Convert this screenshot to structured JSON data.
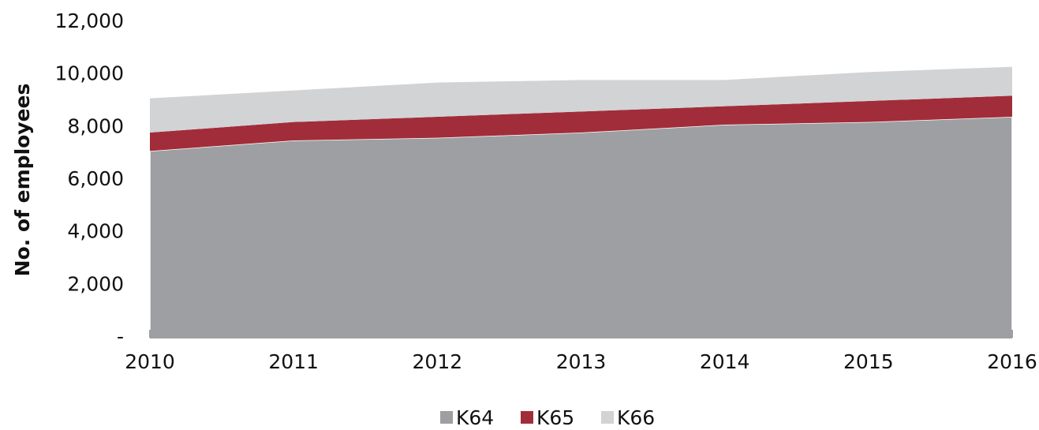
{
  "chart_data": {
    "type": "stacked-area",
    "y_label": "No. of employees",
    "categories": [
      "2010",
      "2011",
      "2012",
      "2013",
      "2014",
      "2015",
      "2016"
    ],
    "series": [
      {
        "name": "K64",
        "color": "#9d9fa2",
        "values": [
          7100,
          7500,
          7600,
          7800,
          8100,
          8200,
          8400
        ]
      },
      {
        "name": "K65",
        "color": "#a22d3a",
        "values": [
          700,
          700,
          800,
          800,
          700,
          800,
          800
        ]
      },
      {
        "name": "K66",
        "color": "#d2d3d5",
        "values": [
          1300,
          1200,
          1300,
          1200,
          1000,
          1100,
          1100
        ]
      }
    ],
    "ylim": [
      0,
      12000
    ],
    "yticks": [
      {
        "value": 0,
        "label": "-"
      },
      {
        "value": 2000,
        "label": "2,000"
      },
      {
        "value": 4000,
        "label": "4,000"
      },
      {
        "value": 6000,
        "label": "6,000"
      },
      {
        "value": 8000,
        "label": "8,000"
      },
      {
        "value": 10000,
        "label": "10,000"
      },
      {
        "value": 12000,
        "label": "12,000"
      }
    ],
    "legend": "bottom"
  }
}
